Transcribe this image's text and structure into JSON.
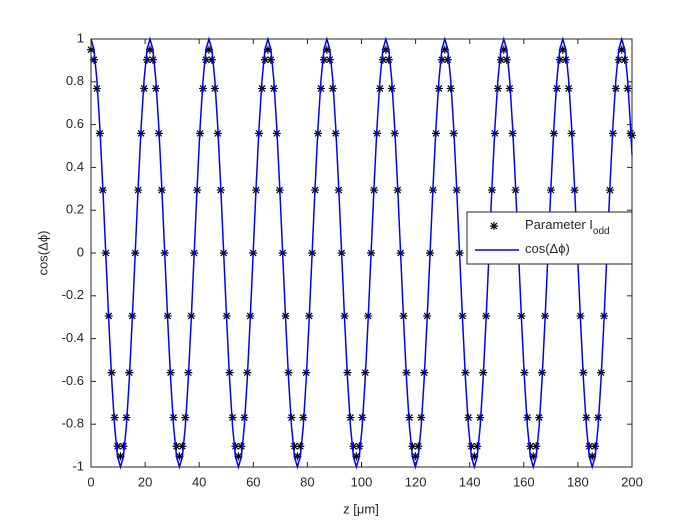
{
  "chart_data": {
    "type": "line",
    "xlabel": "z [μm]",
    "ylabel": "cos(Δϕ)",
    "xlim": [
      0,
      200
    ],
    "xticks": [
      0,
      20,
      40,
      60,
      80,
      100,
      120,
      140,
      160,
      180,
      200
    ],
    "ylim": [
      -1,
      1
    ],
    "yticks": [
      -1,
      -0.8,
      -0.6,
      -0.4,
      -0.2,
      0,
      0.2,
      0.4,
      0.6,
      0.8,
      1
    ],
    "grid": false,
    "legend": "east",
    "x": [
      0,
      1.09,
      2.18,
      3.27,
      4.36,
      5.45,
      6.54,
      7.63,
      8.72,
      9.81,
      10.9,
      11.99,
      13.08,
      14.17,
      15.26,
      16.35,
      17.44,
      18.53,
      19.62,
      20.71,
      21.8,
      22.89,
      23.98,
      25.07,
      26.16,
      27.25,
      28.34,
      29.43,
      30.52,
      31.61,
      32.7,
      33.79,
      34.88,
      35.97,
      37.06,
      38.15,
      39.24,
      40.33,
      41.42,
      42.51,
      43.6,
      44.69,
      45.78,
      46.87,
      47.96,
      49.05,
      50.14,
      51.23,
      52.32,
      53.41,
      54.5,
      55.59,
      56.68,
      57.77,
      58.86,
      59.95,
      61.04,
      62.13,
      63.22,
      64.31,
      65.4,
      66.49,
      67.58,
      68.67,
      69.76,
      70.85,
      71.94,
      73.03,
      74.12,
      75.21,
      76.3,
      77.39,
      78.48,
      79.57,
      80.66,
      81.75,
      82.84,
      83.93,
      85.02,
      86.11,
      87.2,
      88.29,
      89.38,
      90.47,
      91.56,
      92.65,
      93.74,
      94.83,
      95.92,
      97.01,
      98.1,
      99.19,
      100.28,
      101.37,
      102.46,
      103.55,
      104.64,
      105.73,
      106.82,
      107.91,
      109,
      110.09,
      111.18,
      112.27,
      113.36,
      114.45,
      115.54,
      116.63,
      117.72,
      118.81,
      119.9,
      120.99,
      122.08,
      123.17,
      124.26,
      125.35,
      126.44,
      127.53,
      128.62,
      129.71,
      130.8,
      131.89,
      132.98,
      134.07,
      135.16,
      136.25,
      137.34,
      138.43,
      139.52,
      140.61,
      141.7,
      142.79,
      143.88,
      144.97,
      146.06,
      147.15,
      148.24,
      149.33,
      150.42,
      151.51,
      152.6,
      153.69,
      154.78,
      155.87,
      156.96,
      158.05,
      159.14,
      160.23,
      161.32,
      162.41,
      163.5,
      164.59,
      165.68,
      166.77,
      167.86,
      168.95,
      170.04,
      171.13,
      172.22,
      173.31,
      174.4,
      175.49,
      176.58,
      177.67,
      178.76,
      179.85,
      180.94,
      182.03,
      183.12,
      184.21,
      185.3,
      186.39,
      187.48,
      188.57,
      189.66,
      190.75,
      191.84,
      192.93,
      194.02,
      195.11,
      196.2,
      197.29,
      198.38,
      199.47,
      200
    ],
    "series": [
      {
        "name": "Parameter I",
        "name_subscript": "odd",
        "type": "scatter",
        "color": "#000000",
        "values": [
          0.95,
          0.903,
          0.769,
          0.559,
          0.294,
          0,
          -0.294,
          -0.559,
          -0.769,
          -0.903,
          -0.95,
          -0.903,
          -0.769,
          -0.559,
          -0.294,
          0,
          0.294,
          0.559,
          0.769,
          0.903,
          0.95,
          0.903,
          0.769,
          0.559,
          0.294,
          0,
          -0.294,
          -0.559,
          -0.769,
          -0.903,
          -0.95,
          -0.903,
          -0.769,
          -0.559,
          -0.294,
          0,
          0.294,
          0.559,
          0.769,
          0.903,
          0.95,
          0.903,
          0.769,
          0.559,
          0.294,
          0,
          -0.294,
          -0.559,
          -0.769,
          -0.903,
          -0.95,
          -0.903,
          -0.769,
          -0.559,
          -0.294,
          0,
          0.294,
          0.559,
          0.769,
          0.903,
          0.95,
          0.903,
          0.769,
          0.559,
          0.294,
          0,
          -0.294,
          -0.559,
          -0.769,
          -0.903,
          -0.95,
          -0.903,
          -0.769,
          -0.559,
          -0.294,
          0,
          0.294,
          0.559,
          0.769,
          0.903,
          0.95,
          0.903,
          0.769,
          0.559,
          0.294,
          0,
          -0.294,
          -0.559,
          -0.769,
          -0.903,
          -0.95,
          -0.903,
          -0.769,
          -0.559,
          -0.294,
          0,
          0.294,
          0.559,
          0.769,
          0.903,
          0.95,
          0.903,
          0.769,
          0.559,
          0.294,
          0,
          -0.294,
          -0.559,
          -0.769,
          -0.903,
          -0.95,
          -0.903,
          -0.769,
          -0.559,
          -0.294,
          0,
          0.294,
          0.559,
          0.769,
          0.903,
          0.95,
          0.903,
          0.769,
          0.559,
          0.294,
          0,
          -0.294,
          -0.559,
          -0.769,
          -0.903,
          -0.95,
          -0.903,
          -0.769,
          -0.559,
          -0.294,
          0,
          0.294,
          0.559,
          0.769,
          0.903,
          0.95,
          0.903,
          0.769,
          0.559,
          0.294,
          0,
          -0.294,
          -0.559,
          -0.769,
          -0.903,
          -0.95,
          -0.903,
          -0.769,
          -0.559,
          -0.294,
          0,
          0.294,
          0.559,
          0.769,
          0.903,
          0.95,
          0.903,
          0.769,
          0.559,
          0.294,
          0,
          -0.294,
          -0.559,
          -0.769,
          -0.903,
          -0.95,
          -0.903,
          -0.769,
          -0.559,
          -0.294,
          0,
          0.294,
          0.559,
          0.769,
          0.903,
          0.95,
          0.903,
          0.769,
          0.559,
          0.55
        ]
      },
      {
        "name": "cos(Δϕ)",
        "type": "line",
        "color": "#0000ff",
        "values": [
          1,
          0.951,
          0.809,
          0.588,
          0.309,
          0,
          -0.309,
          -0.588,
          -0.809,
          -0.951,
          -1,
          -0.951,
          -0.809,
          -0.588,
          -0.309,
          0,
          0.309,
          0.588,
          0.809,
          0.951,
          1,
          0.951,
          0.809,
          0.588,
          0.309,
          0,
          -0.309,
          -0.588,
          -0.809,
          -0.951,
          -1,
          -0.951,
          -0.809,
          -0.588,
          -0.309,
          0,
          0.309,
          0.588,
          0.809,
          0.951,
          1,
          0.951,
          0.809,
          0.588,
          0.309,
          0,
          -0.309,
          -0.588,
          -0.809,
          -0.951,
          -1,
          -0.951,
          -0.809,
          -0.588,
          -0.309,
          0,
          0.309,
          0.588,
          0.809,
          0.951,
          1,
          0.951,
          0.809,
          0.588,
          0.309,
          0,
          -0.309,
          -0.588,
          -0.809,
          -0.951,
          -1,
          -0.951,
          -0.809,
          -0.588,
          -0.309,
          0,
          0.309,
          0.588,
          0.809,
          0.951,
          1,
          0.951,
          0.809,
          0.588,
          0.309,
          0,
          -0.309,
          -0.588,
          -0.809,
          -0.951,
          -1,
          -0.951,
          -0.809,
          -0.588,
          -0.309,
          0,
          0.309,
          0.588,
          0.809,
          0.951,
          1,
          0.951,
          0.809,
          0.588,
          0.309,
          0,
          -0.309,
          -0.588,
          -0.809,
          -0.951,
          -1,
          -0.951,
          -0.809,
          -0.588,
          -0.309,
          0,
          0.309,
          0.588,
          0.809,
          0.951,
          1,
          0.951,
          0.809,
          0.588,
          0.309,
          0,
          -0.309,
          -0.588,
          -0.809,
          -0.951,
          -1,
          -0.951,
          -0.809,
          -0.588,
          -0.309,
          0,
          0.309,
          0.588,
          0.809,
          0.951,
          1,
          0.951,
          0.809,
          0.588,
          0.309,
          0,
          -0.309,
          -0.588,
          -0.809,
          -0.951,
          -1,
          -0.951,
          -0.809,
          -0.588,
          -0.309,
          0,
          0.309,
          0.588,
          0.809,
          0.951,
          1,
          0.951,
          0.809,
          0.588,
          0.309,
          0,
          -0.309,
          -0.588,
          -0.809,
          -0.951,
          -1,
          -0.951,
          -0.809,
          -0.588,
          -0.309,
          0,
          0.309,
          0.588,
          0.809,
          0.951,
          1,
          0.951,
          0.809,
          0.588,
          0.458
        ]
      }
    ]
  }
}
